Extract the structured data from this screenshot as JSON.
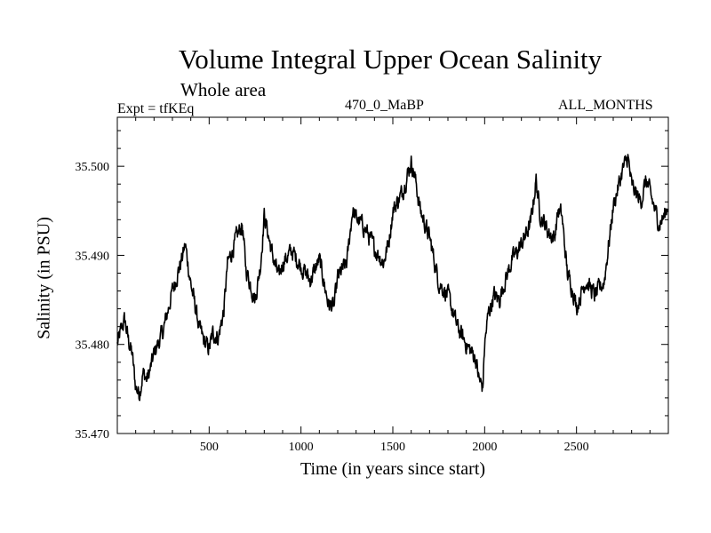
{
  "header": {
    "title": "Volume Integral Upper Ocean Salinity",
    "subtitle": "Whole area",
    "experiment": "Expt = tfKEq",
    "period": "470_0_MaBP",
    "months": "ALL_MONTHS"
  },
  "chart_data": {
    "type": "line",
    "title": "Volume Integral Upper Ocean Salinity",
    "xlabel": "Time (in years since start)",
    "ylabel": "Salinity (in PSU)",
    "xlim": [
      0,
      3000
    ],
    "ylim": [
      35.47,
      35.5055
    ],
    "xticks": [
      500,
      1000,
      1500,
      2000,
      2500
    ],
    "yticks": [
      35.47,
      35.48,
      35.49,
      35.5
    ],
    "ytick_labels": [
      "35.470",
      "35.480",
      "35.490",
      "35.500"
    ],
    "grid": false,
    "series": [
      {
        "color": "#000000",
        "x": [
          0,
          20,
          40,
          60,
          80,
          100,
          120,
          140,
          160,
          180,
          200,
          250,
          300,
          350,
          370,
          400,
          450,
          480,
          500,
          520,
          550,
          580,
          600,
          650,
          680,
          700,
          750,
          780,
          800,
          820,
          850,
          880,
          900,
          950,
          1000,
          1050,
          1100,
          1150,
          1180,
          1200,
          1250,
          1280,
          1300,
          1350,
          1400,
          1450,
          1480,
          1500,
          1550,
          1600,
          1620,
          1650,
          1700,
          1750,
          1800,
          1850,
          1900,
          1950,
          1970,
          1990,
          2000,
          2020,
          2050,
          2080,
          2100,
          2150,
          2200,
          2250,
          2280,
          2300,
          2350,
          2380,
          2400,
          2420,
          2450,
          2480,
          2500,
          2550,
          2600,
          2650,
          2680,
          2700,
          2750,
          2780,
          2800,
          2850,
          2880,
          2900,
          2950,
          2980,
          3000
        ],
        "y": [
          35.48,
          35.4815,
          35.4828,
          35.4805,
          35.479,
          35.4752,
          35.4745,
          35.4768,
          35.476,
          35.4772,
          35.479,
          35.4815,
          35.486,
          35.4895,
          35.4912,
          35.4868,
          35.4815,
          35.48,
          35.4795,
          35.4812,
          35.4808,
          35.4838,
          35.489,
          35.492,
          35.4935,
          35.4885,
          35.485,
          35.489,
          35.4945,
          35.4925,
          35.4895,
          35.4875,
          35.4892,
          35.4905,
          35.4888,
          35.4872,
          35.4895,
          35.4845,
          35.4842,
          35.4875,
          35.4892,
          35.495,
          35.4942,
          35.493,
          35.4908,
          35.4892,
          35.4918,
          35.495,
          35.497,
          35.5005,
          35.4988,
          35.495,
          35.492,
          35.487,
          35.4855,
          35.482,
          35.48,
          35.4785,
          35.476,
          35.4752,
          35.48,
          35.4835,
          35.4855,
          35.485,
          35.4865,
          35.4895,
          35.4912,
          35.4935,
          35.4985,
          35.4948,
          35.4925,
          35.492,
          35.495,
          35.4945,
          35.488,
          35.4862,
          35.4842,
          35.4872,
          35.4855,
          35.487,
          35.492,
          35.4955,
          35.4995,
          35.501,
          35.4978,
          35.496,
          35.4985,
          35.497,
          35.4935,
          35.4945,
          35.4958
        ]
      }
    ]
  }
}
